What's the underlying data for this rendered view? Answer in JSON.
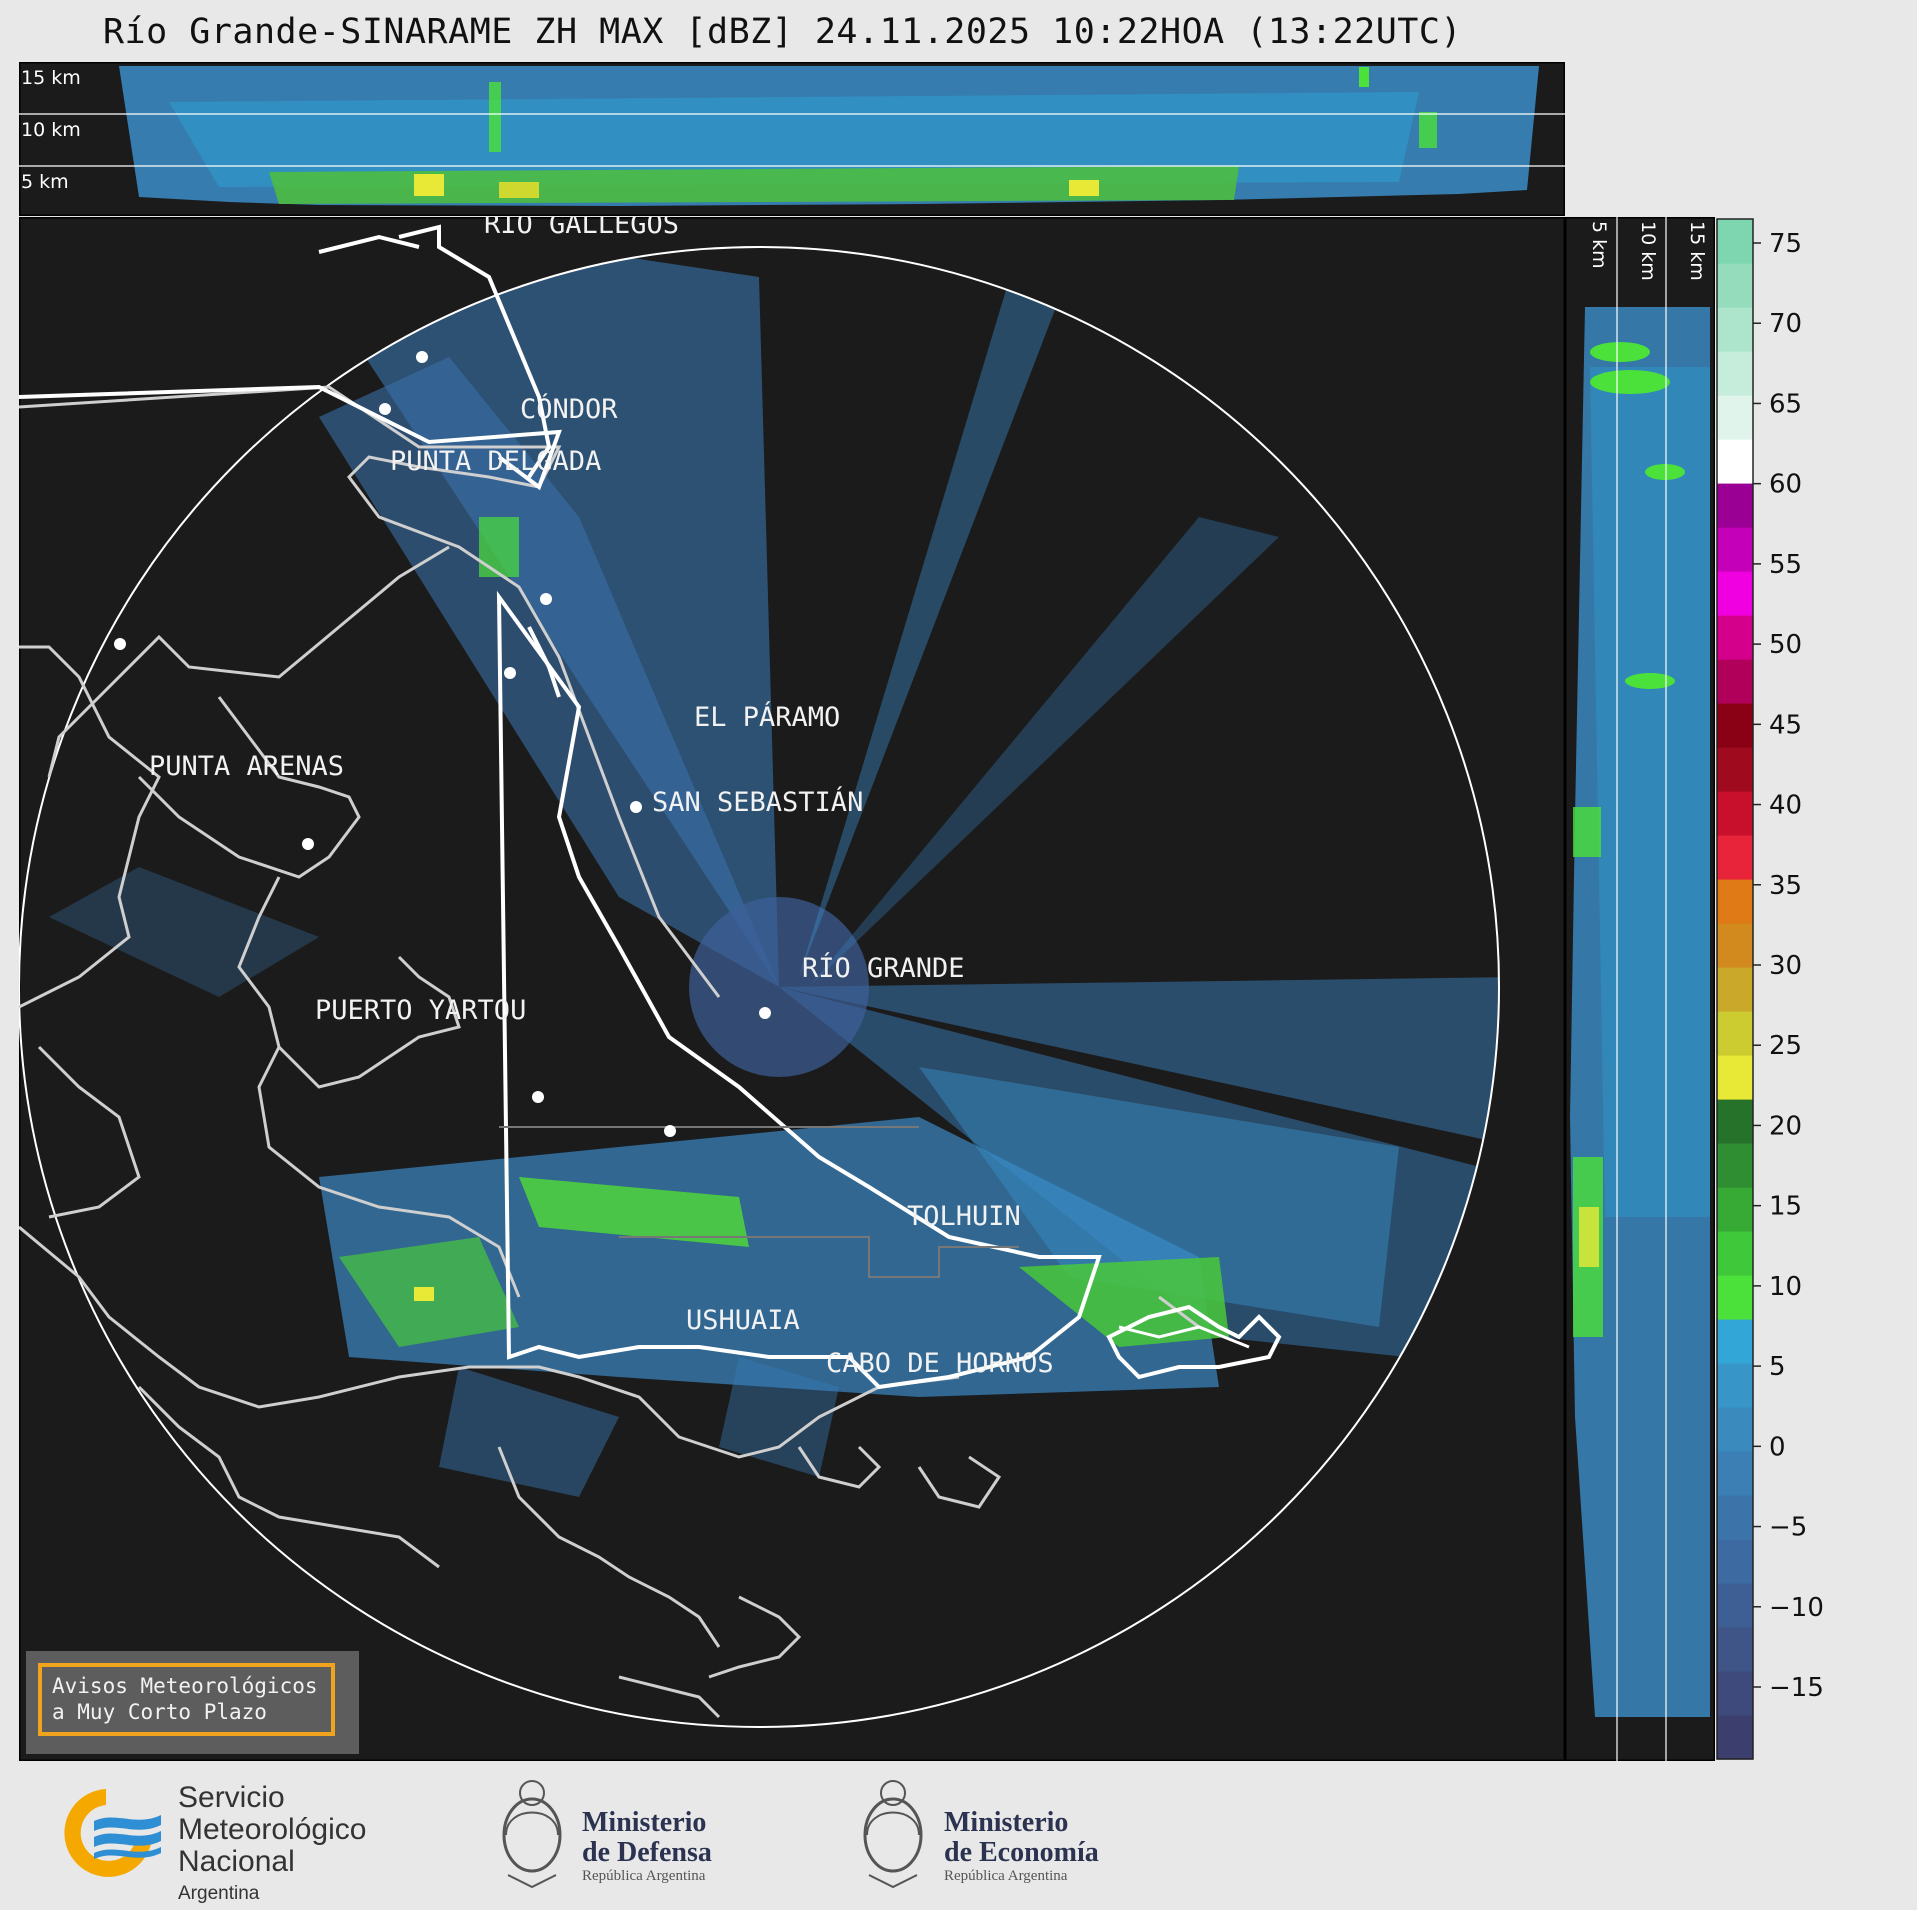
{
  "header": {
    "title": "Río Grande-SINARAME ZH MAX [dBZ] 24.11.2025 10:22HOA (13:22UTC)"
  },
  "height_profile": {
    "top_labels": [
      "15 km",
      "10 km",
      "5 km"
    ],
    "side_labels": [
      "5 km",
      "10 km",
      "15 km"
    ]
  },
  "map": {
    "places": [
      {
        "name": "RÍO GALLEGOS"
      },
      {
        "name": "CÓNDOR"
      },
      {
        "name": "PUNTA DELGADA"
      },
      {
        "name": "EL PÁRAMO"
      },
      {
        "name": "PUNTA ARENAS"
      },
      {
        "name": "SAN SEBASTIÁN"
      },
      {
        "name": "RÍO GRANDE"
      },
      {
        "name": "PUERTO YARTOU"
      },
      {
        "name": "TOLHUIN"
      },
      {
        "name": "USHUAIA"
      },
      {
        "name": "CABO DE HORNOS"
      }
    ],
    "warning": {
      "line1": "Avisos Meteorológicos",
      "line2": "a Muy Corto Plazo"
    }
  },
  "colorbar": {
    "ticks": [
      "75",
      "70",
      "65",
      "60",
      "55",
      "50",
      "45",
      "40",
      "35",
      "30",
      "25",
      "20",
      "15",
      "10",
      "5",
      "0",
      "−5",
      "−10",
      "−15"
    ],
    "colors": [
      "#3c3f6e",
      "#3e4a7c",
      "#3f5587",
      "#3e5f94",
      "#3d6aa0",
      "#3c74aa",
      "#3b7fb4",
      "#3a8abe",
      "#3895c8",
      "#32a6d6",
      "#4be03a",
      "#3fc83a",
      "#37aa35",
      "#2f8e31",
      "#27722b",
      "#e8e836",
      "#cccc30",
      "#c9a82a",
      "#d28a1e",
      "#e07a16",
      "#e8243a",
      "#c8102c",
      "#a00a1e",
      "#8a0014",
      "#b0005a",
      "#d4008c",
      "#f000e0",
      "#c400b8",
      "#9a0094",
      "#ffffff",
      "#e0f4ec",
      "#c6ecdc",
      "#ace4cc",
      "#94dcbc",
      "#7ed6b0"
    ]
  },
  "footer": {
    "smn": {
      "line1": "Servicio",
      "line2": "Meteorológico",
      "line3": "Nacional",
      "line4": "Argentina"
    },
    "defensa": {
      "line1": "Ministerio",
      "line2": "de Defensa",
      "line3": "República Argentina"
    },
    "economia": {
      "line1": "Ministerio",
      "line2": "de Economía",
      "line3": "República Argentina"
    }
  }
}
